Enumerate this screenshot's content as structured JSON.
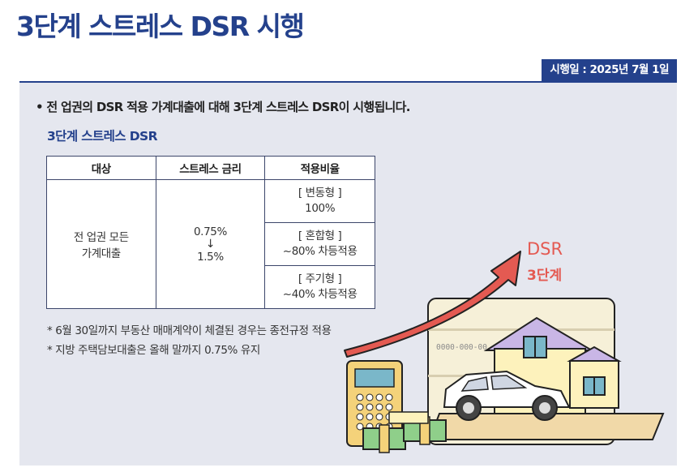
{
  "page": {
    "title": "3단계 스트레스 DSR 시행",
    "date_badge": "시행일 : 2025년 7월 1일",
    "headline": "• 전 업권의 DSR 적용 가계대출에 대해 3단계 스트레스 DSR이 시행됩니다.",
    "subtitle": "3단계 스트레스 DSR"
  },
  "table": {
    "headers": [
      "대상",
      "스트레스 금리",
      "적용비율"
    ],
    "target_lines": [
      "전 업권 모든",
      "가계대출"
    ],
    "rate_from": "0.75%",
    "rate_arrow": "↓",
    "rate_to": "1.5%",
    "ratios": [
      {
        "type": "[ 변동형 ]",
        "value": "100%"
      },
      {
        "type": "[ 혼합형 ]",
        "value": "~80% 차등적용"
      },
      {
        "type": "[ 주기형 ]",
        "value": "~40% 차등적용"
      }
    ]
  },
  "notes": [
    "* 6월 30일까지 부동산 매매계약이 체결된 경우는 종전규정 적용",
    "* 지방 주택담보대출은 올해 말까지 0.75% 유지"
  ],
  "illustration": {
    "label_line1": "DSR",
    "label_line2": "3단계",
    "card_number": "0000-000-00",
    "accent_color": "#e45a52",
    "icons": [
      "calculator-icon",
      "house-icon",
      "car-icon",
      "money-stack-icon",
      "bankbook-icon",
      "upward-arrow-icon"
    ]
  }
}
